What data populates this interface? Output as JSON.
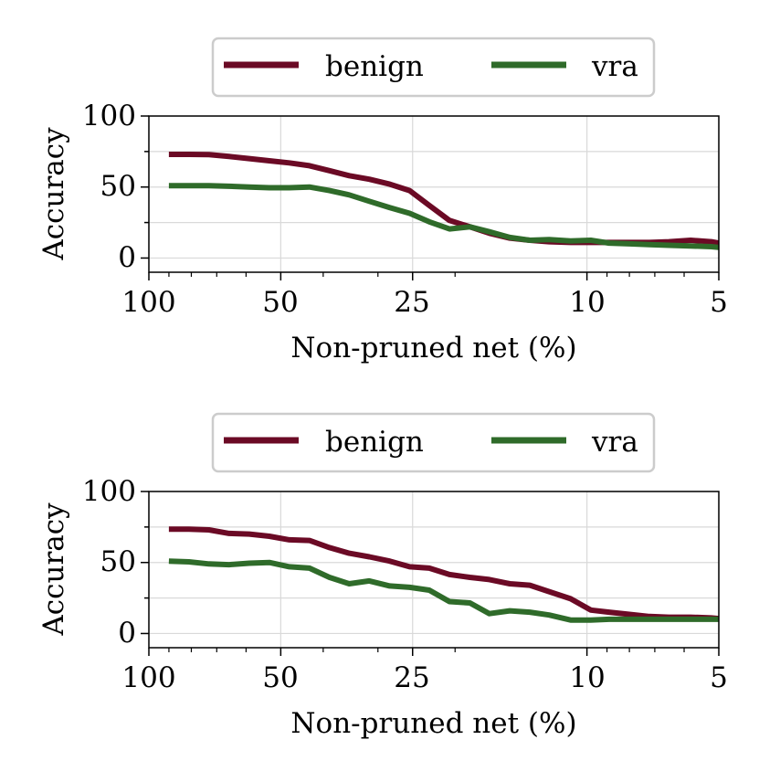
{
  "colors": {
    "benign": "#6b0a25",
    "vra": "#2f6b2a",
    "grid": "#d9d9d9"
  },
  "chart_data": [
    {
      "type": "line",
      "title": "",
      "xlabel": "Non-pruned net (%)",
      "ylabel": "Accuracy",
      "xscale": "log-reversed",
      "xlim": [
        100,
        5
      ],
      "ylim": [
        -10,
        100
      ],
      "xticks": [
        100,
        50,
        25,
        10,
        5
      ],
      "xtick_labels": [
        "100",
        "50",
        "25",
        "10",
        "5"
      ],
      "yticks": [
        0,
        50,
        100
      ],
      "ytick_labels": [
        "0",
        "50",
        "100"
      ],
      "grid": true,
      "legend": "top-center",
      "x": [
        90,
        81,
        72.9,
        65.6,
        59,
        53.1,
        47.8,
        43,
        38.7,
        34.9,
        31.4,
        28.2,
        25.4,
        22.9,
        20.6,
        18.5,
        16.7,
        15,
        13.5,
        12.2,
        10.9,
        9.8,
        8.9,
        8,
        7.2,
        6.5,
        5.8,
        5.2,
        5
      ],
      "series": [
        {
          "name": "benign",
          "values": [
            73,
            73,
            72.8,
            71.5,
            70,
            68.5,
            67,
            65,
            61.5,
            58,
            55.5,
            52,
            47.5,
            37,
            26.5,
            22,
            17.5,
            14,
            12.5,
            11.5,
            11,
            11,
            11,
            11,
            11,
            11.5,
            12.5,
            11.5,
            10.5
          ]
        },
        {
          "name": "vra",
          "values": [
            51,
            51,
            51,
            50.5,
            50,
            49.5,
            49.5,
            50,
            47.5,
            44.5,
            40,
            35.5,
            31.5,
            25.5,
            20.5,
            22,
            18.5,
            14.5,
            12.5,
            13,
            12,
            12.5,
            10.5,
            10,
            9.5,
            9,
            8.5,
            8,
            7.5
          ]
        }
      ]
    },
    {
      "type": "line",
      "title": "",
      "xlabel": "Non-pruned net (%)",
      "ylabel": "Accuracy",
      "xscale": "log-reversed",
      "xlim": [
        100,
        5
      ],
      "ylim": [
        -10,
        100
      ],
      "xticks": [
        100,
        50,
        25,
        10,
        5
      ],
      "xtick_labels": [
        "100",
        "50",
        "25",
        "10",
        "5"
      ],
      "yticks": [
        0,
        50,
        100
      ],
      "ytick_labels": [
        "0",
        "50",
        "100"
      ],
      "grid": true,
      "legend": "top-center",
      "x": [
        90,
        81,
        72.9,
        65.6,
        59,
        53.1,
        47.8,
        43,
        38.7,
        34.9,
        31.4,
        28.2,
        25.4,
        22.9,
        20.6,
        18.5,
        16.7,
        15,
        13.5,
        12.2,
        10.9,
        9.8,
        8.9,
        8,
        7.2,
        6.5,
        5.8,
        5.2,
        5
      ],
      "series": [
        {
          "name": "benign",
          "values": [
            73.5,
            73.5,
            73,
            70.5,
            70,
            68.5,
            66,
            65.5,
            60.5,
            56.5,
            54,
            51,
            47,
            46,
            41.5,
            39.5,
            38,
            35,
            34,
            29.5,
            24.5,
            16.5,
            15,
            13.5,
            12,
            11.5,
            11.5,
            11,
            10.5
          ]
        },
        {
          "name": "vra",
          "values": [
            51,
            50.5,
            49,
            48.5,
            49.5,
            50,
            47,
            46,
            39.5,
            35,
            37,
            33.5,
            32.5,
            30.5,
            22.5,
            21.5,
            14,
            16,
            15,
            13,
            9.5,
            9.5,
            10,
            10,
            10,
            10,
            10,
            10,
            10
          ]
        }
      ]
    }
  ]
}
